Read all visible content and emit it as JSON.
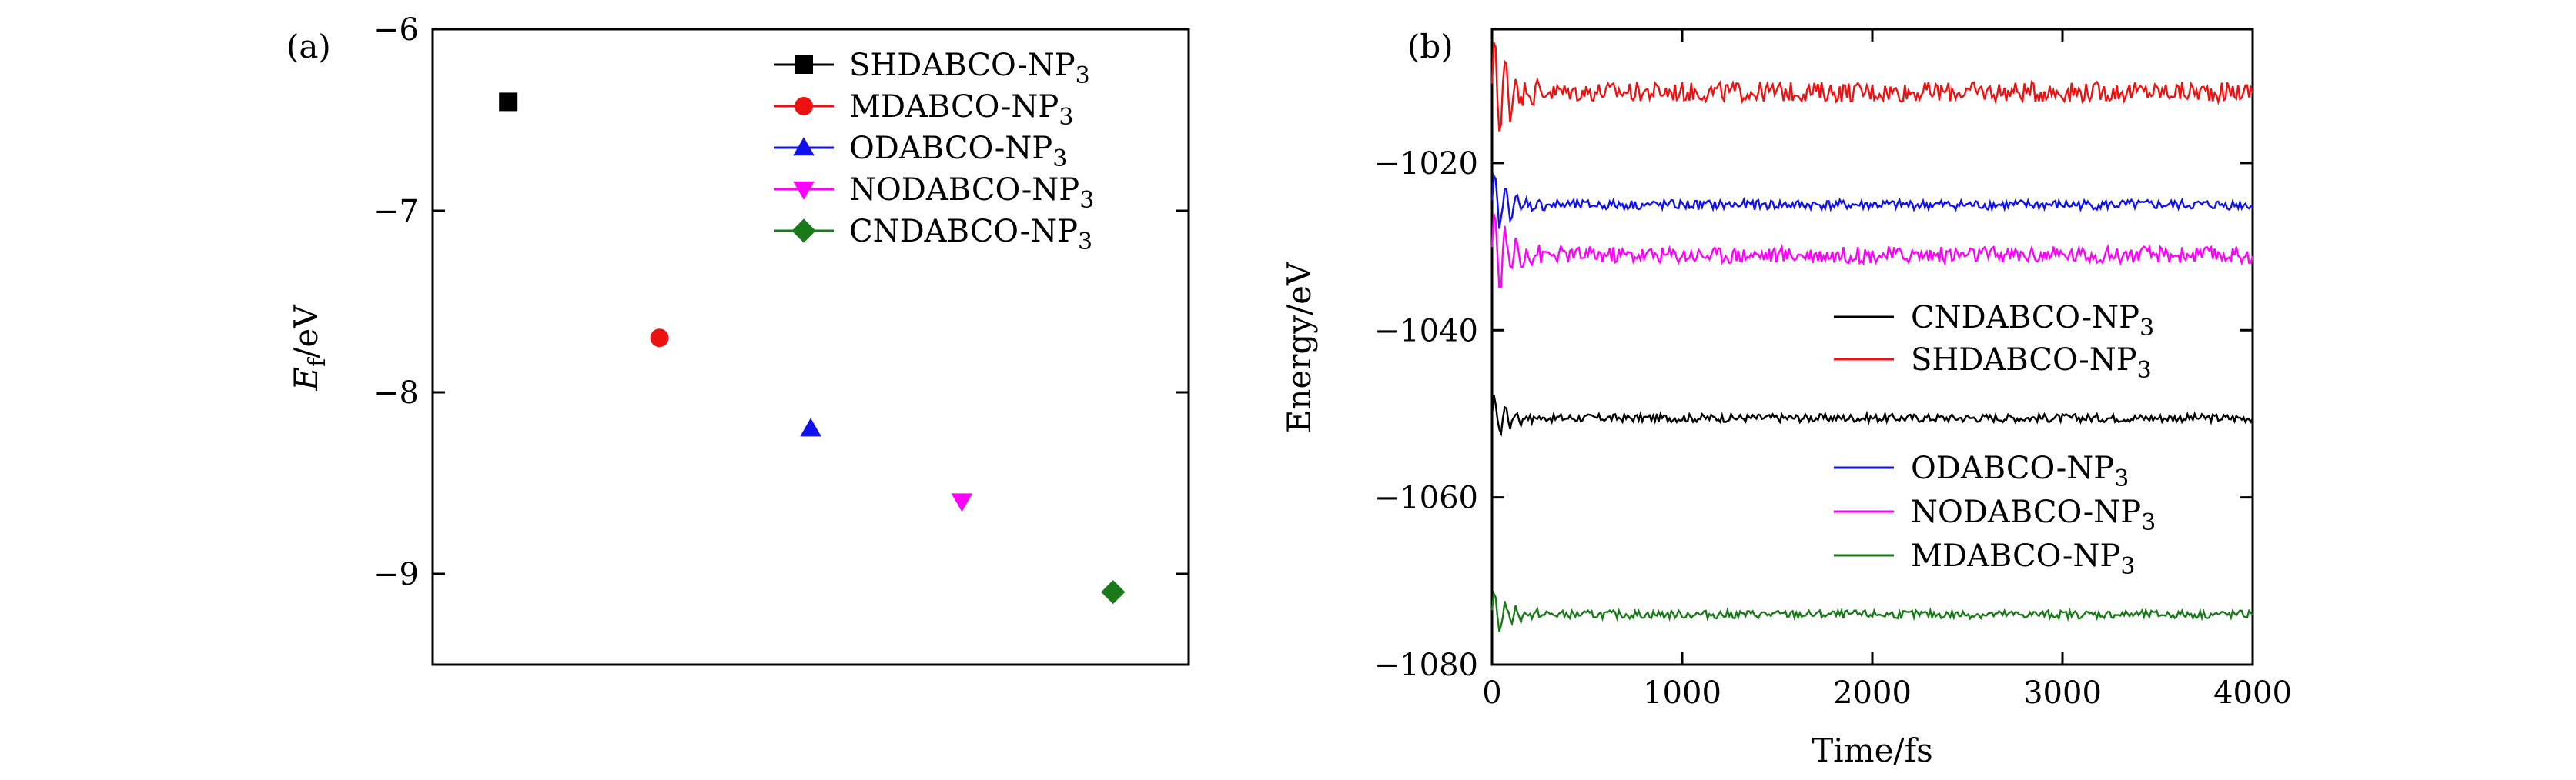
{
  "figure": {
    "panels": [
      "(a)",
      "(b)"
    ]
  },
  "colors": {
    "black": "#000000",
    "red": "#ee1111",
    "blue": "#1111ee",
    "magenta": "#ff00ff",
    "green": "#1a7a1a"
  },
  "chart_data": [
    {
      "type": "scatter",
      "panel": "(a)",
      "xlabel": "",
      "ylabel_main": "E",
      "ylabel_sub": "f",
      "ylabel_unit": "/eV",
      "ylim": [
        -9.5,
        -6
      ],
      "yticks": [
        -6,
        -7,
        -8,
        -9
      ],
      "ytick_labels": [
        "−6",
        "−7",
        "−8",
        "−9"
      ],
      "x_index_range": [
        -0.5,
        4.5
      ],
      "legend_position": "top-right",
      "series": [
        {
          "name": "SHDABCO-NP",
          "sub": "3",
          "x": 0,
          "value": -6.4,
          "marker": "square",
          "color": "#000000"
        },
        {
          "name": "MDABCO-NP",
          "sub": "3",
          "x": 1,
          "value": -7.7,
          "marker": "circle",
          "color": "#ee1111"
        },
        {
          "name": "ODABCO-NP",
          "sub": "3",
          "x": 2,
          "value": -8.2,
          "marker": "triangle-up",
          "color": "#1111ee"
        },
        {
          "name": "NODABCO-NP",
          "sub": "3",
          "x": 3,
          "value": -8.6,
          "marker": "triangle-down",
          "color": "#ff00ff"
        },
        {
          "name": "CNDABCO-NP",
          "sub": "3",
          "x": 4,
          "value": -9.1,
          "marker": "diamond",
          "color": "#1a7a1a"
        }
      ]
    },
    {
      "type": "line",
      "panel": "(b)",
      "xlabel": "Time/fs",
      "ylabel": "Energy/eV",
      "xlim": [
        0,
        4000
      ],
      "ylim": [
        -1080,
        -1004
      ],
      "xticks": [
        0,
        1000,
        2000,
        3000,
        4000
      ],
      "xtick_labels": [
        "0",
        "1000",
        "2000",
        "3000",
        "4000"
      ],
      "yticks": [
        -1020,
        -1040,
        -1060,
        -1080
      ],
      "ytick_labels": [
        "−1020",
        "−1040",
        "−1060",
        "−1080"
      ],
      "legend_position": "center-right",
      "series": [
        {
          "name": "CNDABCO-NP",
          "sub": "3",
          "color": "#000000",
          "mean": -1050.5,
          "noise": 0.5,
          "spike": 3
        },
        {
          "name": "SHDABCO-NP",
          "sub": "3",
          "color": "#ee1111",
          "mean": -1011.5,
          "noise": 1.2,
          "spike": 8
        },
        {
          "name": "ODABCO-NP",
          "sub": "3",
          "color": "#1111ee",
          "mean": -1025.0,
          "noise": 0.6,
          "spike": 4
        },
        {
          "name": "NODABCO-NP",
          "sub": "3",
          "color": "#ff00ff",
          "mean": -1031.0,
          "noise": 1.0,
          "spike": 7
        },
        {
          "name": "MDABCO-NP",
          "sub": "3",
          "color": "#1a7a1a",
          "mean": -1074.0,
          "noise": 0.5,
          "spike": 3
        }
      ]
    }
  ]
}
